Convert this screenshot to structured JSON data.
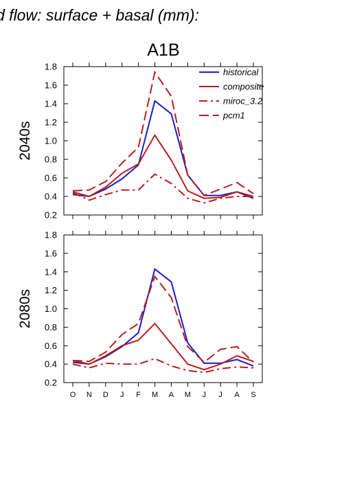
{
  "figure": {
    "main_title": "d flow: surface + basal (mm):",
    "panel_title": "A1B"
  },
  "chart_data": [
    {
      "type": "line",
      "ylabel": "2040s",
      "ylim": [
        0.2,
        1.8
      ],
      "yticks": [
        0.2,
        0.4,
        0.6,
        0.8,
        1.0,
        1.2,
        1.4,
        1.6,
        1.8
      ],
      "ytick_labels": [
        "0.2",
        "0.4",
        "0.6",
        "0.8",
        "1.0",
        "1.2",
        "1.4",
        "1.6",
        "1.8"
      ],
      "categories": [
        "O",
        "N",
        "D",
        "J",
        "F",
        "M",
        "A",
        "M",
        "J",
        "J",
        "A",
        "S"
      ],
      "show_category_labels": false,
      "legend_position": "top-right",
      "series": [
        {
          "name": "historical",
          "color": "#1a1ac8",
          "dash": "solid",
          "values": [
            0.42,
            0.4,
            0.48,
            0.59,
            0.74,
            1.43,
            1.29,
            0.63,
            0.41,
            0.41,
            0.45,
            0.38
          ]
        },
        {
          "name": "composite",
          "color": "#b81d1d",
          "dash": "solid",
          "values": [
            0.45,
            0.4,
            0.5,
            0.65,
            0.75,
            1.06,
            0.79,
            0.46,
            0.38,
            0.39,
            0.45,
            0.4
          ]
        },
        {
          "name": "miroc_3.2",
          "color": "#b81d1d",
          "dash": "dashdot",
          "values": [
            0.44,
            0.36,
            0.42,
            0.47,
            0.47,
            0.64,
            0.54,
            0.38,
            0.33,
            0.38,
            0.4,
            0.4
          ]
        },
        {
          "name": "pcm1",
          "color": "#b81d1d",
          "dash": "dash",
          "values": [
            0.46,
            0.47,
            0.56,
            0.76,
            0.93,
            1.74,
            1.48,
            0.63,
            0.41,
            0.48,
            0.55,
            0.43
          ]
        }
      ]
    },
    {
      "type": "line",
      "ylabel": "2080s",
      "ylim": [
        0.2,
        1.8
      ],
      "yticks": [
        0.2,
        0.4,
        0.6,
        0.8,
        1.0,
        1.2,
        1.4,
        1.6,
        1.8
      ],
      "ytick_labels": [
        "0.2",
        "0.4",
        "0.6",
        "0.8",
        "1.0",
        "1.2",
        "1.4",
        "1.6",
        "1.8"
      ],
      "categories": [
        "O",
        "N",
        "D",
        "J",
        "F",
        "M",
        "A",
        "M",
        "J",
        "J",
        "A",
        "S"
      ],
      "show_category_labels": true,
      "series": [
        {
          "name": "historical",
          "color": "#1a1ac8",
          "dash": "solid",
          "values": [
            0.42,
            0.4,
            0.48,
            0.59,
            0.74,
            1.43,
            1.29,
            0.63,
            0.41,
            0.41,
            0.45,
            0.38
          ]
        },
        {
          "name": "composite",
          "color": "#b81d1d",
          "dash": "solid",
          "values": [
            0.44,
            0.4,
            0.49,
            0.6,
            0.66,
            0.84,
            0.62,
            0.4,
            0.34,
            0.4,
            0.49,
            0.43
          ]
        },
        {
          "name": "miroc_3.2",
          "color": "#b81d1d",
          "dash": "dashdot",
          "values": [
            0.4,
            0.36,
            0.41,
            0.4,
            0.4,
            0.46,
            0.38,
            0.33,
            0.31,
            0.35,
            0.37,
            0.36
          ]
        },
        {
          "name": "pcm1",
          "color": "#b81d1d",
          "dash": "dash",
          "values": [
            0.44,
            0.43,
            0.53,
            0.72,
            0.84,
            1.35,
            1.12,
            0.59,
            0.42,
            0.56,
            0.59,
            0.42
          ]
        }
      ]
    }
  ]
}
